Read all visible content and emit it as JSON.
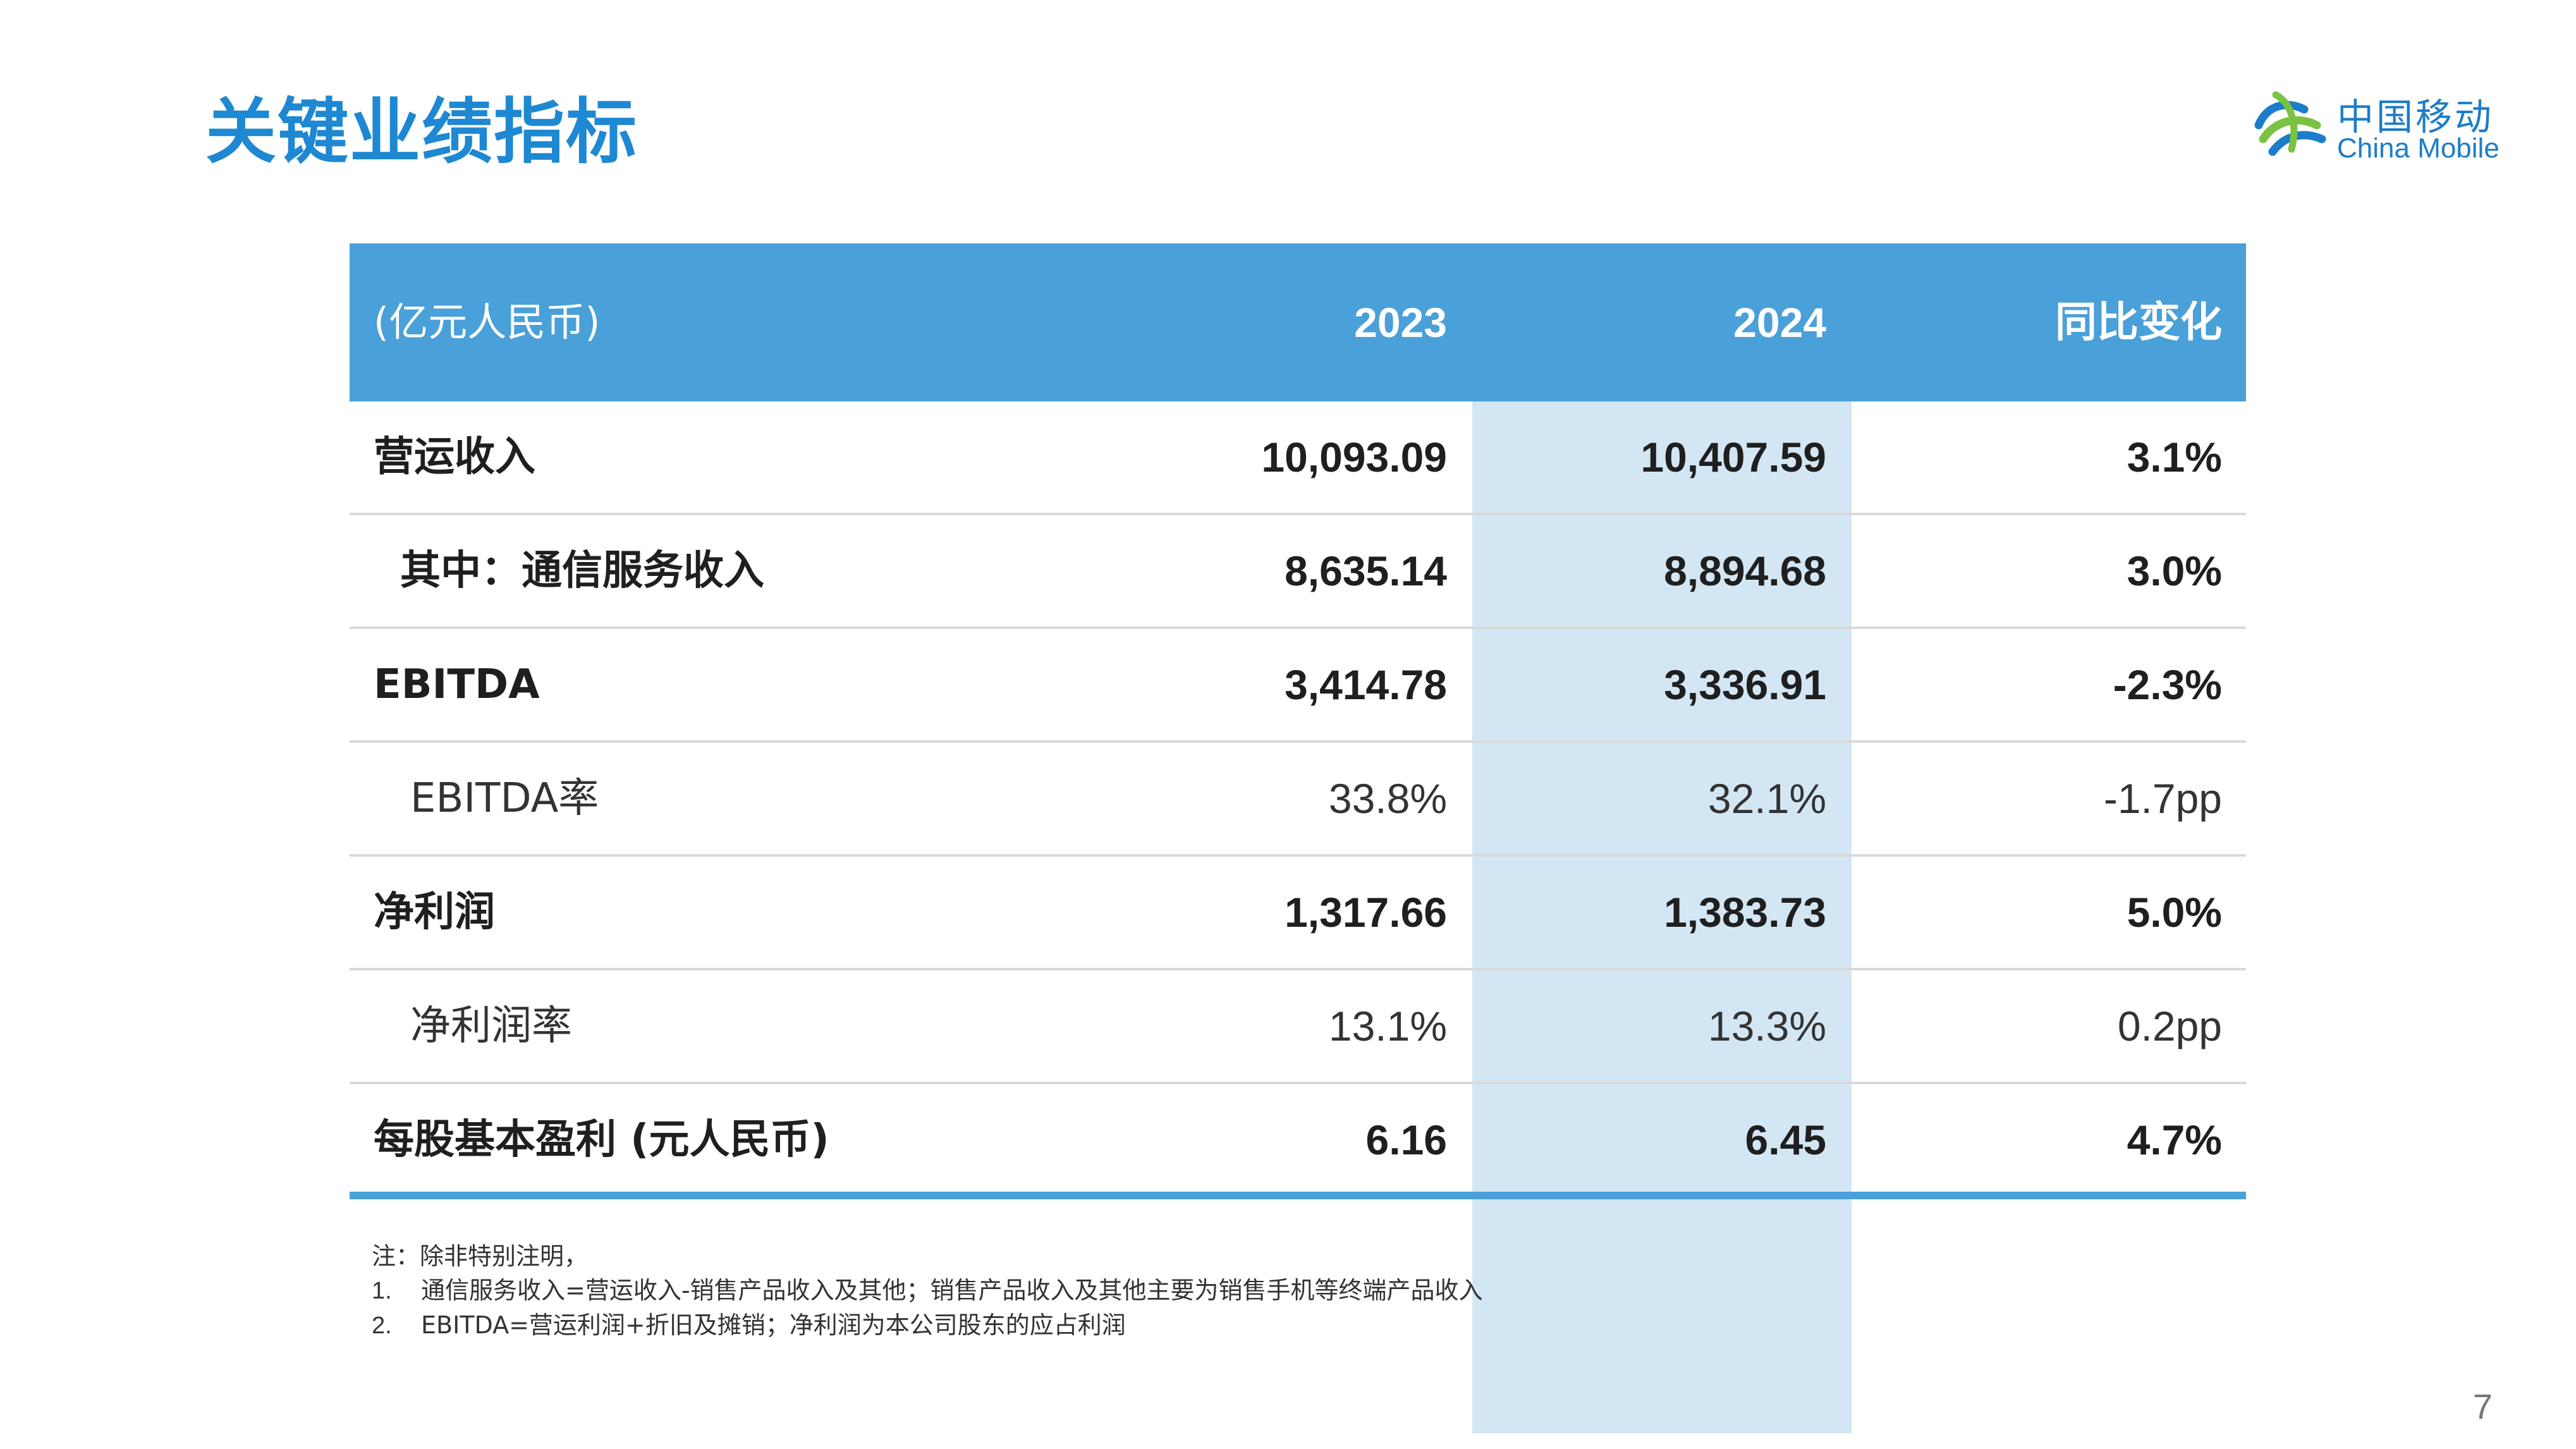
{
  "title": "关键业绩指标",
  "logo": {
    "cn": "中国移动",
    "en": "China Mobile"
  },
  "table": {
    "unit": "(亿元人民币)",
    "columns": [
      "2023",
      "2024",
      "同比变化"
    ],
    "rows": [
      {
        "label": "营运收入",
        "v2023": "10,093.09",
        "v2024": "10,407.59",
        "change": "3.1%"
      },
      {
        "label": "其中：通信服务收入",
        "v2023": "8,635.14",
        "v2024": "8,894.68",
        "change": "3.0%"
      },
      {
        "label": "EBITDA",
        "v2023": "3,414.78",
        "v2024": "3,336.91",
        "change": "-2.3%"
      },
      {
        "label": "EBITDA率",
        "v2023": "33.8%",
        "v2024": "32.1%",
        "change": "-1.7pp"
      },
      {
        "label": "净利润",
        "v2023": "1,317.66",
        "v2024": "1,383.73",
        "change": "5.0%"
      },
      {
        "label": "净利润率",
        "v2023": "13.1%",
        "v2024": "13.3%",
        "change": "0.2pp"
      },
      {
        "label": "每股基本盈利 (元人民币)",
        "v2023": "6.16",
        "v2024": "6.45",
        "change": "4.7%"
      }
    ]
  },
  "notes": {
    "intro": "注：除非特别注明，",
    "items": [
      {
        "num": "1.",
        "text": "通信服务收入=营运收入-销售产品收入及其他；销售产品收入及其他主要为销售手机等终端产品收入"
      },
      {
        "num": "2.",
        "text": "EBITDA=营运利润+折旧及摊销；净利润为本公司股东的应占利润"
      }
    ]
  },
  "page_number": "7",
  "colors": {
    "title": "#1e88d2",
    "header_bg": "#4aa0d8",
    "highlight_col": "#d3e6f3",
    "logo": "#1d7cc9"
  }
}
